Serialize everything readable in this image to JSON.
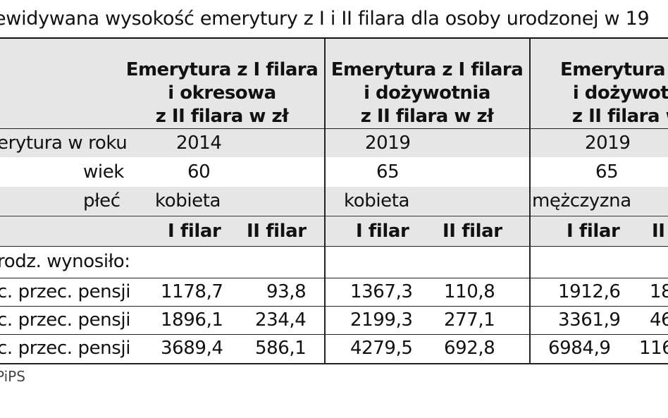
{
  "title": "ewidywana wysokość emerytury z I i II filara dla osoby urodzonej w 19",
  "columns": [
    {
      "line1": "Emerytura z I filara",
      "line2": "i okresowa",
      "line3": "z II filara w zł"
    },
    {
      "line1": "Emerytura z I filara",
      "line2": "i dożywotnia",
      "line3": "z II filara w zł"
    },
    {
      "line1": "Emerytura z I",
      "line2": "i dożywotn",
      "line3": "z II filara w"
    }
  ],
  "rows": {
    "year": {
      "label": "erytura w roku",
      "values": [
        "2014",
        "2019",
        "2019"
      ]
    },
    "age": {
      "label": "wiek",
      "values": [
        "60",
        "65",
        "65"
      ]
    },
    "sex": {
      "label": "płeć",
      "values": [
        "kobieta",
        "kobieta",
        "mężczyzna"
      ]
    },
    "pillars": {
      "values": [
        "I filar",
        "II filar",
        "I filar",
        "II filar",
        "I filar",
        "II"
      ]
    },
    "section": {
      "label": "rodz. wynosiło:"
    },
    "data": [
      {
        "label": "c. przec. pensji",
        "values": [
          "1178,7",
          "93,8",
          "1367,3",
          "110,8",
          "1912,6",
          "18"
        ]
      },
      {
        "label": "c. przec. pensji",
        "values": [
          "1896,1",
          "234,4",
          "2199,3",
          "277,1",
          "3361,9",
          "46"
        ]
      },
      {
        "label": "c. przec. pensji",
        "values": [
          "3689,4",
          "586,1",
          "4279,5",
          "692,8",
          "6984,9",
          "116"
        ]
      }
    ]
  },
  "source": "PiPS"
}
